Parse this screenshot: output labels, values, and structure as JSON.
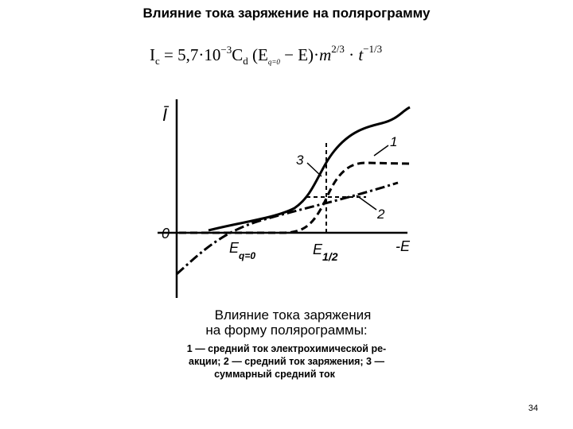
{
  "title": "Влияние тока заряжение на полярограмму",
  "formula": [
    "I",
    "c",
    " = 5,7·10",
    "−3",
    "C",
    "d",
    " (E",
    "q=0",
    " − E)·",
    "m",
    "2/3",
    " · ",
    "t",
    "−1/3"
  ],
  "figure": {
    "y_axis_label": "Ī",
    "origin_label": "0",
    "x_axis_label": "-E",
    "e_q0": {
      "main": "E",
      "sub": "q=0"
    },
    "e_half": {
      "main": "E",
      "sub": "1/2"
    },
    "curve_labels": [
      "1",
      "2",
      "3"
    ]
  },
  "caption": {
    "title_lines": [
      "Влияние  тока  заряжения",
      "на форму  полярограммы:"
    ],
    "body_lines": [
      "1 — средний ток  электрохимической ре-",
      "акции; 2 — средний ток заряжения; 3 —",
      "суммарный средний ток"
    ]
  },
  "page_number": "34"
}
